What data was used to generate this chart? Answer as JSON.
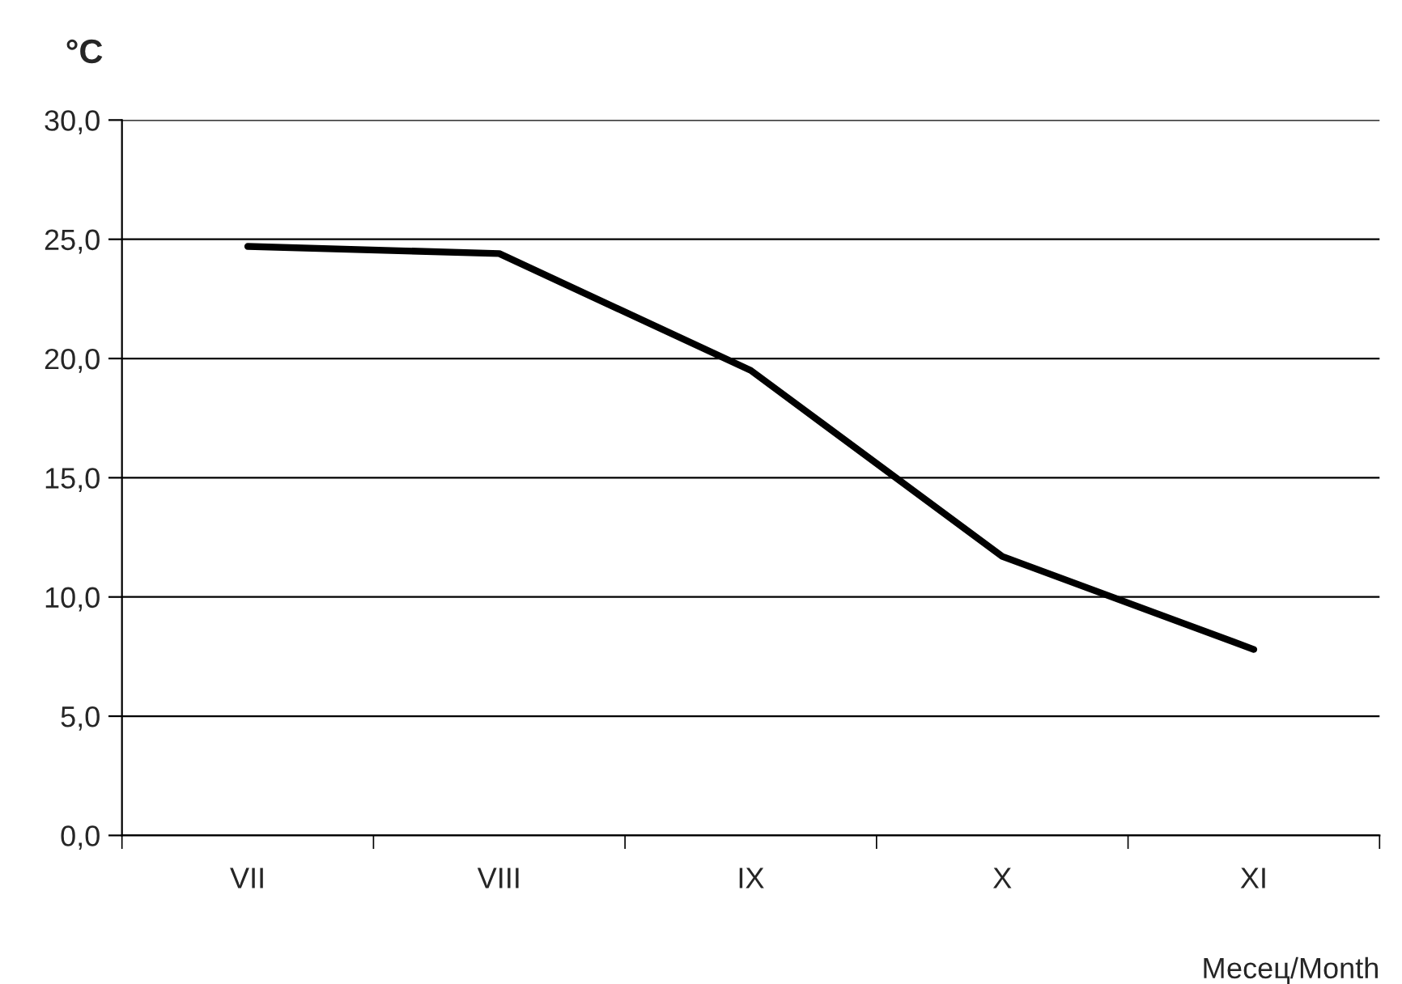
{
  "chart_data": {
    "type": "line",
    "ylabel": "°C",
    "xlabel": "Месец/Month",
    "categories": [
      "VII",
      "VIII",
      "IX",
      "X",
      "XI"
    ],
    "series": [
      {
        "color": "#000000",
        "values": [
          24.7,
          24.4,
          19.5,
          11.7,
          7.8
        ]
      }
    ],
    "ylim": [
      0,
      30
    ],
    "yticks": [
      {
        "value": 0,
        "label": "0,0"
      },
      {
        "value": 5,
        "label": "5,0"
      },
      {
        "value": 10,
        "label": "10,0"
      },
      {
        "value": 15,
        "label": "15,0"
      },
      {
        "value": 20,
        "label": "20,0"
      },
      {
        "value": 25,
        "label": "25,0"
      },
      {
        "value": 30,
        "label": "30,0"
      }
    ],
    "grid": "y",
    "marker": "none",
    "line_style": "solid",
    "legend": false
  }
}
